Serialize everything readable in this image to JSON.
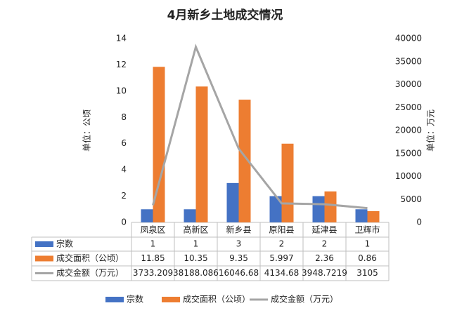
{
  "chart_data": {
    "type": "bar",
    "title": "4月新乡土地成交情况",
    "y_label": "单位：公顷",
    "y2_label": "单位：万元",
    "categories": [
      "凤泉区",
      "高新区",
      "新乡县",
      "原阳县",
      "延津县",
      "卫辉市"
    ],
    "series": [
      {
        "name": "宗数",
        "type": "bar",
        "color": "#4472c4",
        "values": [
          1,
          1,
          3,
          2,
          2,
          1
        ]
      },
      {
        "name": "成交面积（公顷）",
        "type": "bar",
        "color": "#ed7d31",
        "values": [
          11.85,
          10.35,
          9.35,
          5.997,
          2.36,
          0.86
        ]
      },
      {
        "name": "成交金额（万元）",
        "type": "line",
        "axis": "y2",
        "color": "#a5a5a5",
        "values": [
          3733.209,
          38188.086,
          16046.68,
          4134.68,
          3948.7219,
          3105
        ]
      }
    ],
    "ylim": [
      0,
      14
    ],
    "yticks": [
      0,
      2,
      4,
      6,
      8,
      10,
      12,
      14
    ],
    "y2lim": [
      0,
      40000
    ],
    "y2ticks": [
      0,
      5000,
      10000,
      15000,
      20000,
      25000,
      30000,
      35000,
      40000
    ],
    "grid": false
  }
}
